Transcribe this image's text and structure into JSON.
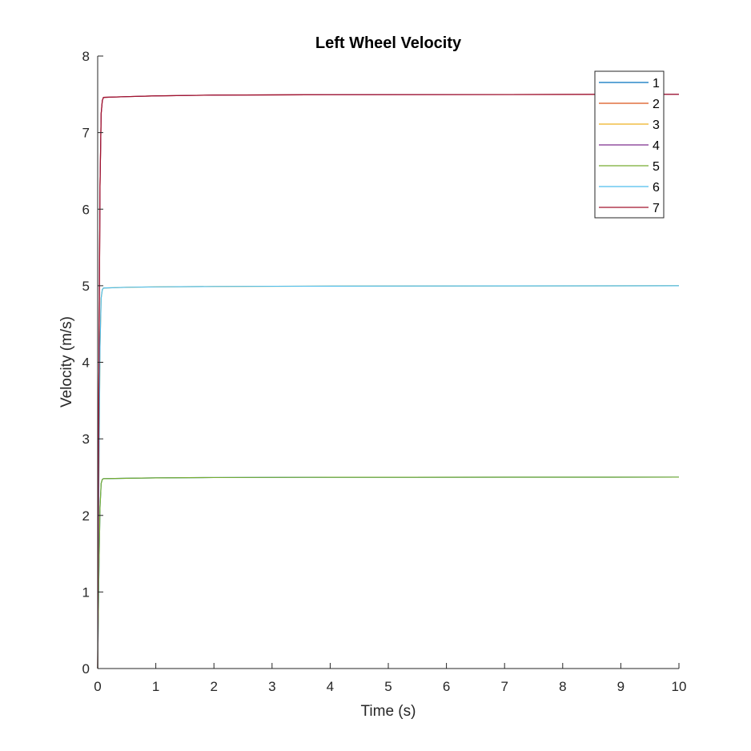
{
  "chart_data": {
    "type": "line",
    "title": "Left Wheel Velocity",
    "xlabel": "Time (s)",
    "ylabel": "Velocity (m/s)",
    "xlim": [
      0,
      10
    ],
    "ylim": [
      0,
      8
    ],
    "xticks": [
      0,
      1,
      2,
      3,
      4,
      5,
      6,
      7,
      8,
      9,
      10
    ],
    "yticks": [
      0,
      1,
      2,
      3,
      4,
      5,
      6,
      7,
      8
    ],
    "grid": false,
    "legend_position": "top-right",
    "series": [
      {
        "name": "1",
        "color": "#0072BD",
        "x": [
          0,
          0.02,
          0.04,
          0.06,
          0.08,
          0.1,
          0.5,
          1,
          2,
          4,
          10
        ],
        "y": [
          0,
          1.2,
          2.1,
          2.42,
          2.47,
          2.48,
          2.485,
          2.49,
          2.495,
          2.498,
          2.5
        ]
      },
      {
        "name": "2",
        "color": "#D95319",
        "x": [
          0,
          0.02,
          0.04,
          0.06,
          0.08,
          0.1,
          0.5,
          1,
          2,
          4,
          10
        ],
        "y": [
          0,
          3.6,
          6.3,
          7.25,
          7.42,
          7.46,
          7.47,
          7.48,
          7.49,
          7.495,
          7.5
        ]
      },
      {
        "name": "3",
        "color": "#EDB120",
        "x": [
          0,
          0.02,
          0.04,
          0.06,
          0.08,
          0.1,
          0.5,
          1,
          2,
          4,
          10
        ],
        "y": [
          0,
          2.4,
          4.2,
          4.84,
          4.95,
          4.97,
          4.98,
          4.985,
          4.99,
          4.995,
          5.0
        ]
      },
      {
        "name": "4",
        "color": "#7E2F8E",
        "x": [
          0,
          0.02,
          0.04,
          0.06,
          0.08,
          0.1,
          0.5,
          1,
          2,
          4,
          10
        ],
        "y": [
          0,
          3.6,
          6.3,
          7.25,
          7.42,
          7.46,
          7.47,
          7.48,
          7.49,
          7.495,
          7.5
        ]
      },
      {
        "name": "5",
        "color": "#77AC30",
        "x": [
          0,
          0.02,
          0.04,
          0.06,
          0.08,
          0.1,
          0.5,
          1,
          2,
          4,
          10
        ],
        "y": [
          0,
          1.2,
          2.1,
          2.42,
          2.47,
          2.48,
          2.485,
          2.49,
          2.495,
          2.498,
          2.5
        ]
      },
      {
        "name": "6",
        "color": "#4DBEEE",
        "x": [
          0,
          0.02,
          0.04,
          0.06,
          0.08,
          0.1,
          0.5,
          1,
          2,
          4,
          10
        ],
        "y": [
          0,
          2.4,
          4.2,
          4.84,
          4.95,
          4.97,
          4.98,
          4.985,
          4.99,
          4.995,
          5.0
        ]
      },
      {
        "name": "7",
        "color": "#A2142F",
        "x": [
          0,
          0.02,
          0.04,
          0.06,
          0.08,
          0.1,
          0.5,
          1,
          2,
          4,
          10
        ],
        "y": [
          0,
          3.6,
          6.3,
          7.25,
          7.42,
          7.46,
          7.47,
          7.48,
          7.49,
          7.495,
          7.5
        ]
      }
    ]
  }
}
